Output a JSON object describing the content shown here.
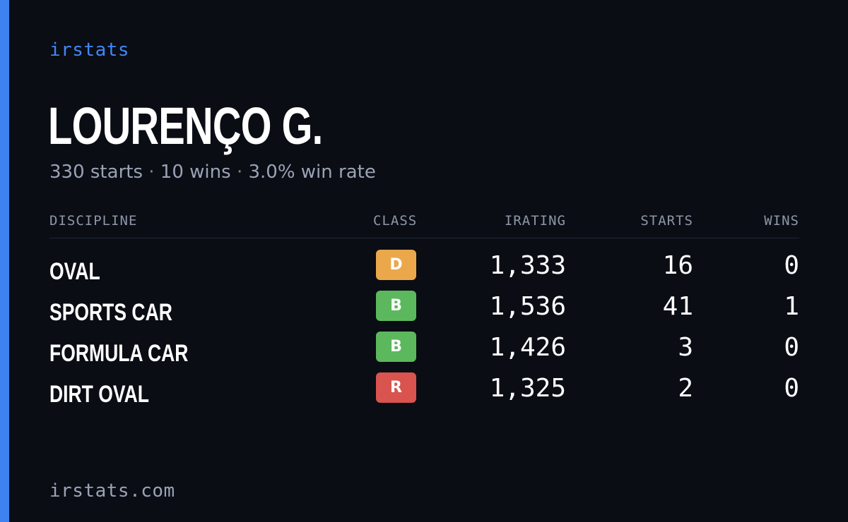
{
  "brand": "irstats",
  "driver": {
    "name": "LOURENÇO G.",
    "starts_text": "330 starts",
    "wins_text": "10 wins",
    "win_rate_text": "3.0% win rate",
    "separator": "·"
  },
  "table": {
    "headers": {
      "discipline": "DISCIPLINE",
      "class": "CLASS",
      "irating": "IRATING",
      "starts": "STARTS",
      "wins": "WINS"
    },
    "rows": [
      {
        "discipline": "OVAL",
        "class": "D",
        "class_color": "#eaa84b",
        "irating": "1,333",
        "starts": "16",
        "wins": "0"
      },
      {
        "discipline": "SPORTS CAR",
        "class": "B",
        "class_color": "#5cb85c",
        "irating": "1,536",
        "starts": "41",
        "wins": "1"
      },
      {
        "discipline": "FORMULA CAR",
        "class": "B",
        "class_color": "#5cb85c",
        "irating": "1,426",
        "starts": "3",
        "wins": "0"
      },
      {
        "discipline": "DIRT OVAL",
        "class": "R",
        "class_color": "#d9534f",
        "irating": "1,325",
        "starts": "2",
        "wins": "0"
      }
    ]
  },
  "footer": "irstats.com",
  "colors": {
    "accent": "#3d82f0",
    "background": "#0a0d14"
  }
}
